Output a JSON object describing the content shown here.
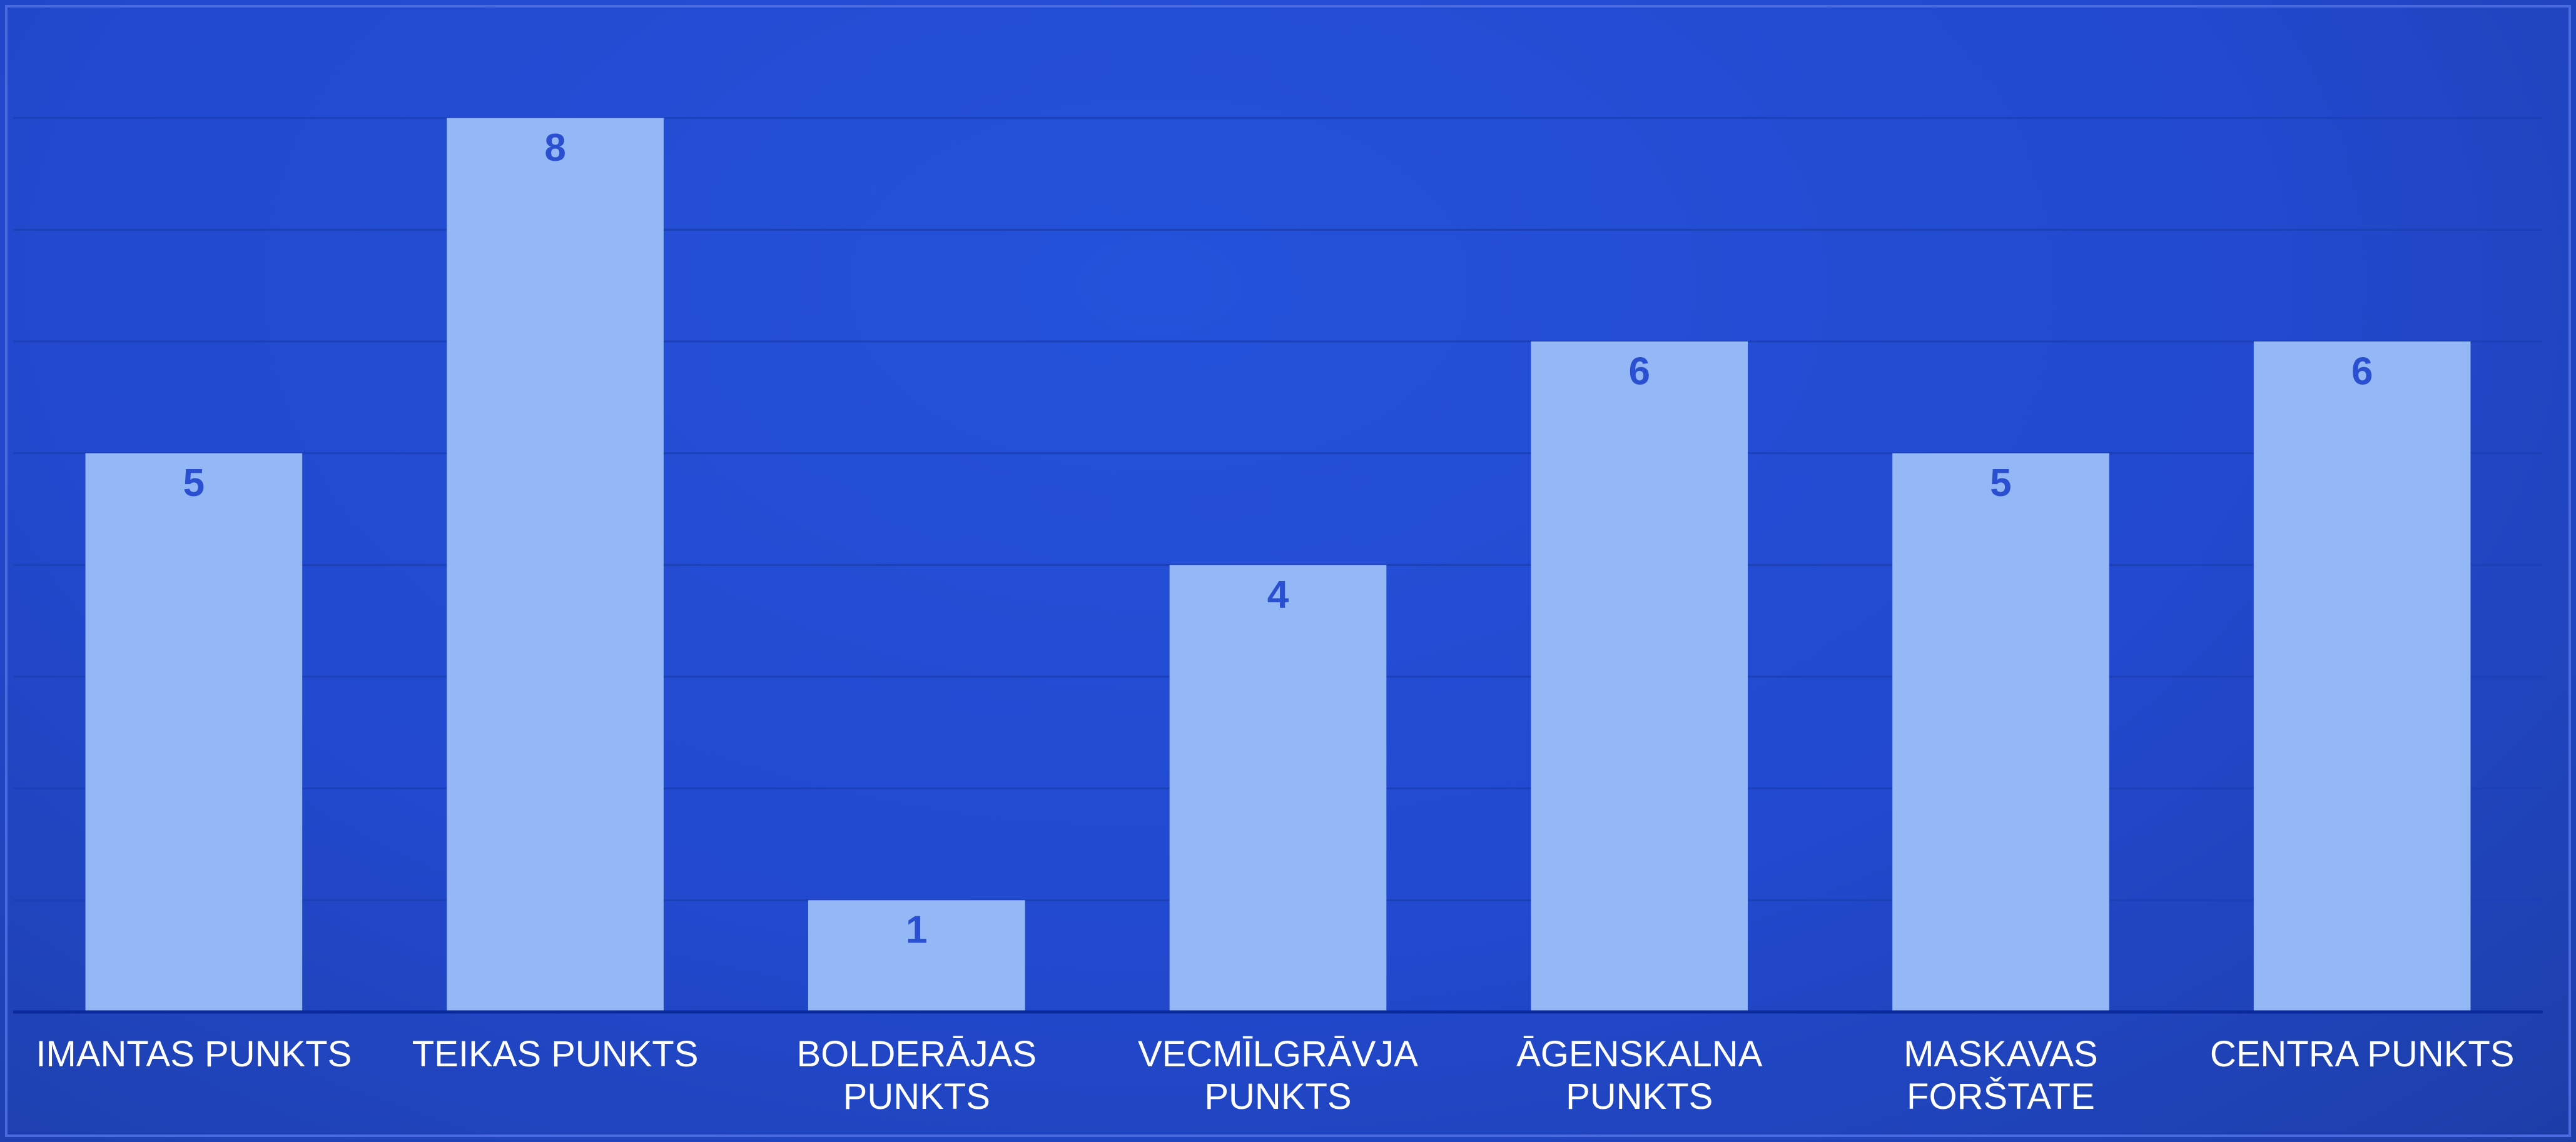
{
  "chart_data": {
    "type": "bar",
    "categories": [
      "IMANTAS PUNKTS",
      "TEIKAS PUNKTS",
      "BOLDERĀJAS PUNKTS",
      "VECMĪLGRĀVJA PUNKTS",
      "ĀGENSKALNA PUNKTS",
      "MASKAVAS FORŠTATE",
      "CENTRA PUNKTS"
    ],
    "values": [
      5,
      8,
      1,
      4,
      6,
      5,
      6
    ],
    "color": "#93b8f5",
    "ylim": [
      0,
      9
    ],
    "yticks": [
      0,
      1,
      2,
      3,
      4,
      5,
      6,
      7,
      8
    ],
    "grid": true
  }
}
